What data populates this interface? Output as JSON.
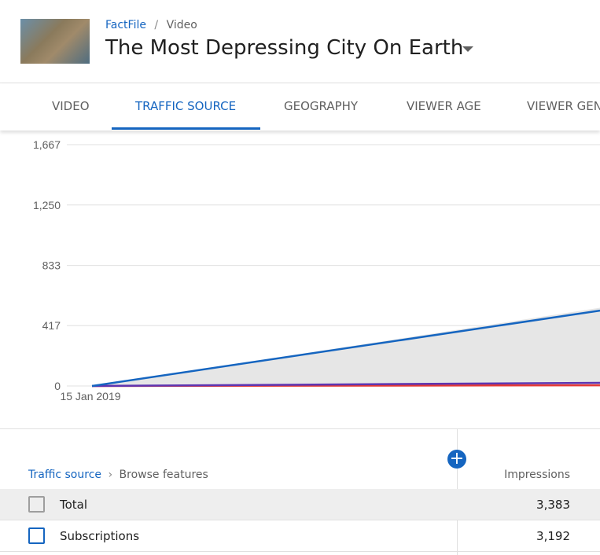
{
  "header": {
    "channel": "FactFile",
    "separator": "/",
    "section": "Video",
    "title": "The Most Depressing City On Earth"
  },
  "tabs": {
    "items": [
      "VIDEO",
      "TRAFFIC SOURCE",
      "GEOGRAPHY",
      "VIEWER AGE",
      "VIEWER GENDER"
    ],
    "active": 1
  },
  "chart_data": {
    "type": "line",
    "x": [
      "15 Jan 2019",
      null
    ],
    "ylim": [
      0,
      1667
    ],
    "yticks": [
      0,
      {
        "value": 417,
        "label": "417"
      },
      {
        "value": 833,
        "label": "833"
      },
      {
        "value": 1250,
        "label": "1,250"
      },
      {
        "value": 1667,
        "label": "1,667"
      }
    ],
    "grid": true,
    "area": {
      "color": "#e6e6e6",
      "values": [
        0,
        540
      ]
    },
    "series": [
      {
        "color": "#1565c0",
        "values": [
          0,
          521
        ]
      },
      {
        "color": "#5e35b1",
        "values": [
          0,
          22
        ]
      },
      {
        "color": "#e53935",
        "values": [
          0,
          5
        ]
      }
    ]
  },
  "table": {
    "breadcrumb": [
      "Traffic source",
      "Browse features"
    ],
    "columns": [
      "Impressions"
    ],
    "rows": [
      [
        "Total",
        "3,383"
      ],
      [
        "Subscriptions",
        "3,192"
      ]
    ]
  }
}
